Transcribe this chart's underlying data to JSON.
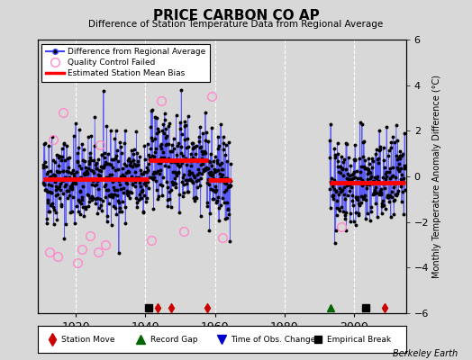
{
  "title": "PRICE CARBON CO AP",
  "subtitle": "Difference of Station Temperature Data from Regional Average",
  "ylabel": "Monthly Temperature Anomaly Difference (°C)",
  "xlabel_years": [
    1920,
    1940,
    1960,
    1980,
    2000
  ],
  "xlim": [
    1909,
    2015
  ],
  "ylim": [
    -6,
    6
  ],
  "yticks": [
    -6,
    -4,
    -2,
    0,
    2,
    4,
    6
  ],
  "background_color": "#d8d8d8",
  "plot_bg_color": "#d8d8d8",
  "grid_color": "#ffffff",
  "data_line_color": "#4444ff",
  "data_marker_color": "#000000",
  "bias_line_color": "#ff0000",
  "qc_fail_color": "#ff88cc",
  "watermark": "Berkeley Earth",
  "bias_segments": [
    {
      "x_start": 1910.5,
      "x_end": 1941.0,
      "bias": -0.12
    },
    {
      "x_start": 1941.0,
      "x_end": 1958.0,
      "bias": 0.72
    },
    {
      "x_start": 1958.0,
      "x_end": 1964.7,
      "bias": -0.15
    },
    {
      "x_start": 1993.0,
      "x_end": 2014.8,
      "bias": -0.28
    }
  ],
  "station_moves": [
    1943.5,
    1947.5,
    1957.7,
    2008.8
  ],
  "record_gaps_x": [
    1993.3
  ],
  "empirical_breaks": [
    1941.0,
    2003.5
  ],
  "gap_regions": [
    [
      1964.7,
      1993.0
    ]
  ],
  "n_per_year": 12,
  "noise_std": 1.0,
  "seed": 42,
  "qc_points_1": [
    [
      1912.5,
      -3.3
    ],
    [
      1913.5,
      1.6
    ],
    [
      1914.8,
      -3.5
    ],
    [
      1916.2,
      2.8
    ],
    [
      1920.5,
      -3.8
    ],
    [
      1921.8,
      -3.2
    ],
    [
      1924.0,
      -2.6
    ],
    [
      1926.3,
      -3.3
    ],
    [
      1927.0,
      1.4
    ],
    [
      1928.5,
      -3.0
    ]
  ],
  "qc_points_2": [
    [
      1941.8,
      -2.8
    ],
    [
      1944.5,
      3.3
    ],
    [
      1951.0,
      -2.4
    ]
  ],
  "qc_points_3": [
    [
      1959.0,
      3.5
    ],
    [
      1962.3,
      -2.7
    ]
  ],
  "qc_points_4": [
    [
      1996.5,
      -2.2
    ]
  ]
}
